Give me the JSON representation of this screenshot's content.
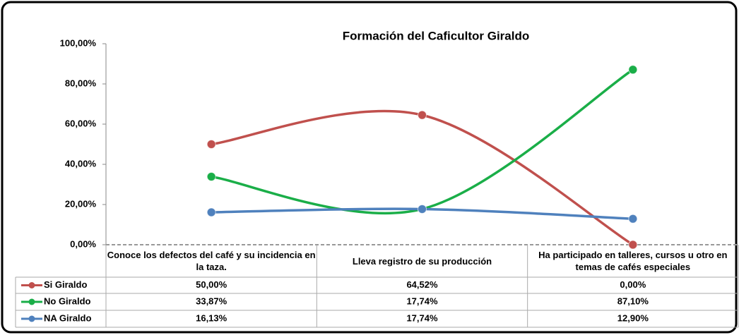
{
  "chart_data": {
    "type": "line",
    "title": "Formación del Caficultor Giraldo",
    "categories": [
      "Conoce los defectos del café y su incidencia en la taza.",
      "Lleva registro de su producción",
      "Ha participado en talleres, cursos u otro en temas de cafés especiales"
    ],
    "series": [
      {
        "name": "Si Giraldo",
        "color": "#c0504d",
        "values": [
          50,
          64.52,
          0
        ],
        "value_labels": [
          "50,00%",
          "64,52%",
          "0,00%"
        ]
      },
      {
        "name": "No Giraldo",
        "color": "#1aae48",
        "values": [
          33.87,
          17.74,
          87.1
        ],
        "value_labels": [
          "33,87%",
          "17,74%",
          "87,10%"
        ]
      },
      {
        "name": "NA Giraldo",
        "color": "#4f81bd",
        "values": [
          16.13,
          17.74,
          12.9
        ],
        "value_labels": [
          "16,13%",
          "17,74%",
          "12,90%"
        ]
      }
    ],
    "ylim": [
      0,
      100
    ],
    "yticks": [
      {
        "value": 0,
        "label": "0,00%"
      },
      {
        "value": 20,
        "label": "20,00%"
      },
      {
        "value": 40,
        "label": "40,00%"
      },
      {
        "value": 60,
        "label": "60,00%"
      },
      {
        "value": 80,
        "label": "80,00%"
      },
      {
        "value": 100,
        "label": "100,00%"
      }
    ],
    "smooth": true
  }
}
